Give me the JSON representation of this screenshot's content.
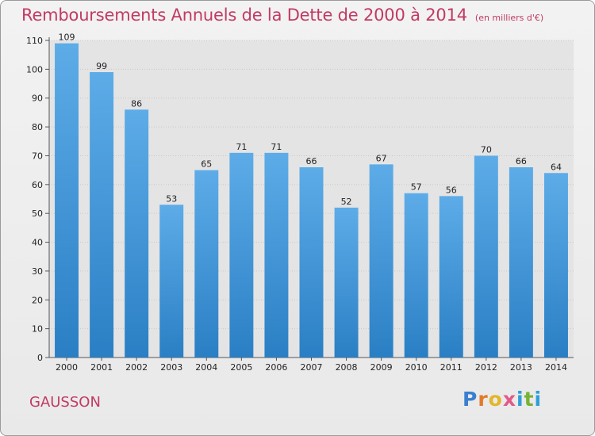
{
  "title": "Remboursements Annuels de la Dette de 2000 à 2014",
  "subtitle": "(en milliers d'€)",
  "commune": "GAUSSON",
  "brand": {
    "name": "Proxiti",
    "letters": [
      "P",
      "r",
      "o",
      "x",
      "i",
      "t",
      "i"
    ],
    "letter_colors": [
      "#3a7fd1",
      "#e37b27",
      "#e3b52a",
      "#e25a8a",
      "#2e9fd9",
      "#76b335",
      "#2e9fd9"
    ]
  },
  "colors": {
    "bar_top": "#5dace8",
    "bar_bottom": "#2a7fc4",
    "title": "#c23a63",
    "plot_bg": "#e4e4e4",
    "grid": "#c8c8c8"
  },
  "chart_data": {
    "type": "bar",
    "title": "Remboursements Annuels de la Dette de 2000 à 2014",
    "subtitle": "(en milliers d'€)",
    "categories": [
      "2000",
      "2001",
      "2002",
      "2003",
      "2004",
      "2005",
      "2006",
      "2007",
      "2008",
      "2009",
      "2010",
      "2011",
      "2012",
      "2013",
      "2014"
    ],
    "values": [
      109,
      99,
      86,
      53,
      65,
      71,
      71,
      66,
      52,
      67,
      57,
      56,
      70,
      66,
      64
    ],
    "ylim": [
      0,
      110
    ],
    "yticks": [
      0,
      10,
      20,
      30,
      40,
      50,
      60,
      70,
      80,
      90,
      100,
      110
    ],
    "grid": true,
    "xlabel": "",
    "ylabel": ""
  }
}
